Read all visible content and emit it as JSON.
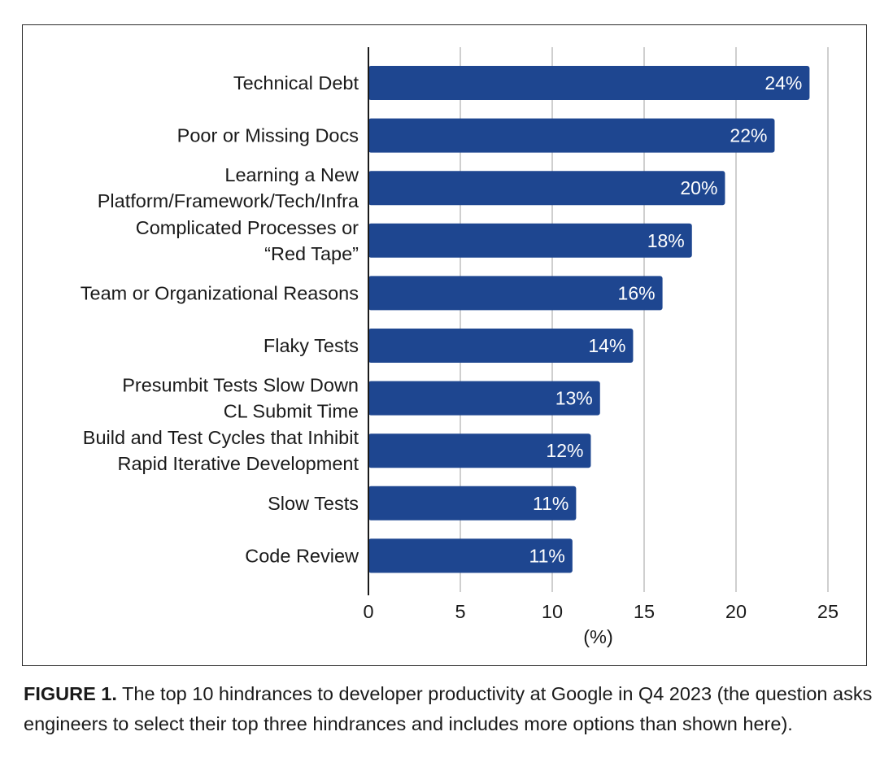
{
  "chart_data": {
    "type": "bar",
    "orientation": "horizontal",
    "categories": [
      [
        "Technical Debt"
      ],
      [
        "Poor or Missing Docs"
      ],
      [
        "Learning a New",
        "Platform/Framework/Tech/Infra"
      ],
      [
        "Complicated Processes or",
        "“Red Tape”"
      ],
      [
        "Team or Organizational Reasons"
      ],
      [
        "Flaky Tests"
      ],
      [
        "Presumbit Tests Slow Down",
        "CL Submit Time"
      ],
      [
        "Build and Test Cycles that Inhibit",
        "Rapid Iterative Development"
      ],
      [
        "Slow Tests"
      ],
      [
        "Code Review"
      ]
    ],
    "values": [
      24,
      22,
      20,
      18,
      16,
      14,
      13,
      12,
      11,
      11
    ],
    "value_labels": [
      "24%",
      "22%",
      "20%",
      "18%",
      "16%",
      "14%",
      "13%",
      "12%",
      "11%",
      "11%"
    ],
    "bar_lengths": [
      24.0,
      22.1,
      19.4,
      17.6,
      16.0,
      14.4,
      12.6,
      12.1,
      11.3,
      11.1
    ],
    "xlim": [
      0,
      25
    ],
    "xticks": [
      0,
      5,
      10,
      15,
      20,
      25
    ],
    "xlabel": "(%)",
    "grid": true,
    "bar_color": "#1e4690",
    "grid_color": "#cfcfcf"
  },
  "caption": {
    "label": "FIGURE 1.",
    "text": " The top 10 hindrances to developer productivity at Google in Q4 2023 (the question asks engineers to select their top three hindrances and includes more options than shown here)."
  }
}
